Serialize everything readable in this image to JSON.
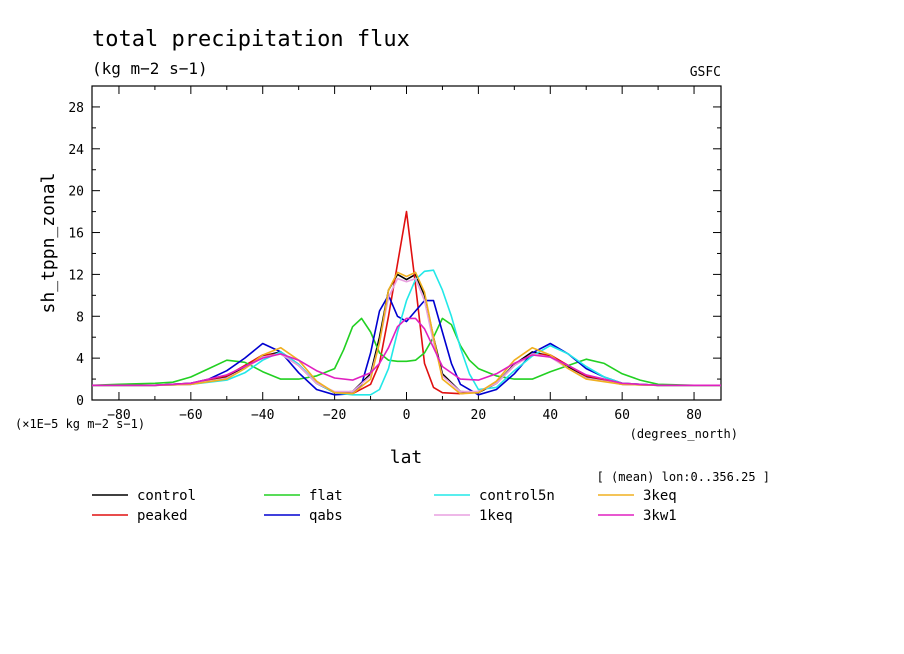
{
  "chart_data": {
    "type": "line",
    "title": "total precipitation flux",
    "units": "(kg m−2 s−1)",
    "source": "GSFC",
    "ylabel": "sh_tppn_zonal",
    "xlabel": "lat",
    "x_units": "(degrees_north)",
    "y_scale_label": "(×1E−5 kg m−2 s−1)",
    "annotation": "[ (mean) lon:0..356.25 ]",
    "xlim": [
      -87.5,
      87.5
    ],
    "ylim": [
      0,
      30
    ],
    "x_ticks": [
      -80,
      -60,
      -40,
      -20,
      0,
      20,
      40,
      60,
      80
    ],
    "x_tick_labels": [
      "−80",
      "−60",
      "−40",
      "−20",
      "0",
      "20",
      "40",
      "60",
      "80"
    ],
    "y_ticks": [
      0,
      4,
      8,
      12,
      16,
      20,
      24,
      28
    ],
    "y_tick_labels": [
      "0",
      "4",
      "8",
      "12",
      "16",
      "20",
      "24",
      "28"
    ],
    "series": [
      {
        "name": "control",
        "color": "#000000",
        "x": [
          -87.5,
          -80,
          -70,
          -60,
          -50,
          -45,
          -40,
          -35,
          -30,
          -25,
          -20,
          -15,
          -10,
          -7.5,
          -5,
          -2.5,
          0,
          2.5,
          5,
          7.5,
          10,
          15,
          20,
          25,
          30,
          35,
          40,
          45,
          50,
          60,
          70,
          80,
          87.5
        ],
        "y": [
          1.4,
          1.4,
          1.4,
          1.5,
          2.2,
          3.2,
          4.2,
          4.6,
          3.4,
          1.6,
          0.7,
          0.8,
          2.5,
          6.0,
          10.5,
          12.0,
          11.5,
          12.0,
          10.0,
          6.0,
          2.5,
          0.8,
          0.7,
          1.6,
          3.4,
          4.6,
          4.2,
          3.2,
          2.2,
          1.5,
          1.4,
          1.4,
          1.4
        ]
      },
      {
        "name": "peaked",
        "color": "#e01010",
        "x": [
          -87.5,
          -80,
          -70,
          -60,
          -50,
          -45,
          -40,
          -35,
          -30,
          -25,
          -20,
          -15,
          -10,
          -7.5,
          -5,
          -2.5,
          0,
          2.5,
          5,
          7.5,
          10,
          15,
          20,
          25,
          30,
          35,
          40,
          45,
          50,
          60,
          70,
          80,
          87.5
        ],
        "y": [
          1.4,
          1.4,
          1.4,
          1.6,
          2.3,
          3.3,
          4.3,
          4.4,
          3.3,
          1.6,
          0.7,
          0.6,
          1.5,
          3.5,
          8.0,
          13.0,
          18.0,
          11.0,
          3.5,
          1.2,
          0.7,
          0.6,
          0.8,
          1.6,
          3.3,
          4.4,
          4.3,
          3.3,
          2.3,
          1.6,
          1.4,
          1.4,
          1.4
        ]
      },
      {
        "name": "flat",
        "color": "#22d022",
        "x": [
          -87.5,
          -80,
          -70,
          -65,
          -60,
          -55,
          -50,
          -45,
          -40,
          -35,
          -30,
          -25,
          -20,
          -17.5,
          -15,
          -12.5,
          -10,
          -7.5,
          -5,
          -2.5,
          0,
          2.5,
          5,
          7.5,
          10,
          12.5,
          15,
          17.5,
          20,
          25,
          30,
          35,
          40,
          45,
          50,
          55,
          60,
          65,
          70,
          80,
          87.5
        ],
        "y": [
          1.4,
          1.5,
          1.6,
          1.7,
          2.2,
          3.0,
          3.8,
          3.6,
          2.7,
          2.0,
          2.0,
          2.3,
          3.0,
          4.8,
          7.0,
          7.8,
          6.5,
          4.5,
          3.8,
          3.7,
          3.7,
          3.8,
          4.5,
          6.0,
          7.8,
          7.2,
          5.2,
          3.8,
          3.0,
          2.3,
          2.0,
          2.0,
          2.7,
          3.3,
          3.9,
          3.5,
          2.5,
          1.9,
          1.5,
          1.4,
          1.4
        ]
      },
      {
        "name": "qabs",
        "color": "#0000d0",
        "x": [
          -87.5,
          -80,
          -70,
          -60,
          -55,
          -50,
          -45,
          -40,
          -35,
          -30,
          -25,
          -20,
          -15,
          -12.5,
          -10,
          -7.5,
          -5,
          -2.5,
          0,
          2.5,
          5,
          7.5,
          10,
          12.5,
          15,
          20,
          25,
          30,
          35,
          40,
          45,
          50,
          55,
          60,
          70,
          80,
          87.5
        ],
        "y": [
          1.4,
          1.4,
          1.4,
          1.6,
          2.0,
          2.8,
          4.0,
          5.4,
          4.6,
          2.6,
          1.0,
          0.5,
          0.6,
          1.5,
          4.5,
          8.5,
          10.0,
          8.0,
          7.5,
          8.5,
          9.5,
          9.5,
          6.5,
          3.5,
          1.5,
          0.5,
          1.0,
          2.5,
          4.5,
          5.4,
          4.4,
          3.0,
          2.2,
          1.6,
          1.4,
          1.4,
          1.4
        ]
      },
      {
        "name": "control5n",
        "color": "#22e8e8",
        "x": [
          -87.5,
          -80,
          -70,
          -60,
          -50,
          -45,
          -40,
          -35,
          -30,
          -25,
          -20,
          -15,
          -10,
          -7.5,
          -5,
          -2.5,
          0,
          2.5,
          5,
          7.5,
          10,
          12.5,
          15,
          17.5,
          20,
          25,
          30,
          35,
          40,
          45,
          50,
          55,
          60,
          70,
          80,
          87.5
        ],
        "y": [
          1.4,
          1.4,
          1.4,
          1.5,
          1.9,
          2.6,
          3.8,
          4.6,
          3.4,
          1.6,
          0.7,
          0.5,
          0.5,
          1.0,
          3.0,
          6.5,
          9.5,
          11.5,
          12.3,
          12.4,
          10.5,
          8.0,
          5.0,
          2.5,
          1.0,
          1.2,
          2.8,
          4.2,
          5.2,
          4.4,
          3.2,
          2.2,
          1.6,
          1.4,
          1.4,
          1.4
        ]
      },
      {
        "name": "1keq",
        "color": "#e8a0e0",
        "x": [
          -87.5,
          -80,
          -70,
          -60,
          -50,
          -45,
          -40,
          -35,
          -30,
          -25,
          -20,
          -15,
          -10,
          -7.5,
          -5,
          -2.5,
          0,
          2.5,
          5,
          7.5,
          10,
          15,
          20,
          25,
          30,
          35,
          40,
          45,
          50,
          60,
          70,
          80,
          87.5
        ],
        "y": [
          1.4,
          1.4,
          1.4,
          1.5,
          2.1,
          3.0,
          4.1,
          4.4,
          3.3,
          1.6,
          0.8,
          0.8,
          2.3,
          5.5,
          9.8,
          11.6,
          11.3,
          11.6,
          9.5,
          5.5,
          2.3,
          0.8,
          0.8,
          1.6,
          3.3,
          4.4,
          4.1,
          3.0,
          2.1,
          1.5,
          1.4,
          1.4,
          1.4
        ]
      },
      {
        "name": "3keq",
        "color": "#f0b020",
        "x": [
          -87.5,
          -80,
          -70,
          -60,
          -50,
          -45,
          -40,
          -35,
          -30,
          -25,
          -20,
          -15,
          -10,
          -7.5,
          -5,
          -2.5,
          0,
          2.5,
          5,
          7.5,
          10,
          15,
          20,
          25,
          30,
          35,
          40,
          45,
          50,
          60,
          70,
          80,
          87.5
        ],
        "y": [
          1.4,
          1.4,
          1.4,
          1.5,
          2.0,
          3.0,
          4.3,
          5.0,
          3.8,
          1.8,
          0.7,
          0.6,
          2.0,
          5.5,
          10.5,
          12.2,
          11.8,
          12.2,
          10.3,
          6.0,
          2.0,
          0.6,
          0.7,
          1.8,
          3.8,
          5.0,
          4.3,
          3.0,
          2.0,
          1.5,
          1.4,
          1.4,
          1.4
        ]
      },
      {
        "name": "3kw1",
        "color": "#e020c0",
        "x": [
          -87.5,
          -80,
          -70,
          -60,
          -50,
          -45,
          -40,
          -35,
          -30,
          -25,
          -20,
          -15,
          -10,
          -7.5,
          -5,
          -2.5,
          0,
          2.5,
          5,
          7.5,
          10,
          15,
          20,
          25,
          30,
          35,
          40,
          45,
          50,
          60,
          70,
          80,
          87.5
        ],
        "y": [
          1.4,
          1.4,
          1.4,
          1.6,
          2.4,
          3.2,
          4.0,
          4.4,
          3.8,
          2.8,
          2.1,
          1.9,
          2.6,
          3.5,
          5.0,
          7.0,
          7.8,
          7.8,
          6.8,
          5.0,
          3.2,
          2.0,
          1.9,
          2.5,
          3.5,
          4.3,
          4.1,
          3.3,
          2.4,
          1.6,
          1.4,
          1.4,
          1.4
        ]
      }
    ]
  }
}
